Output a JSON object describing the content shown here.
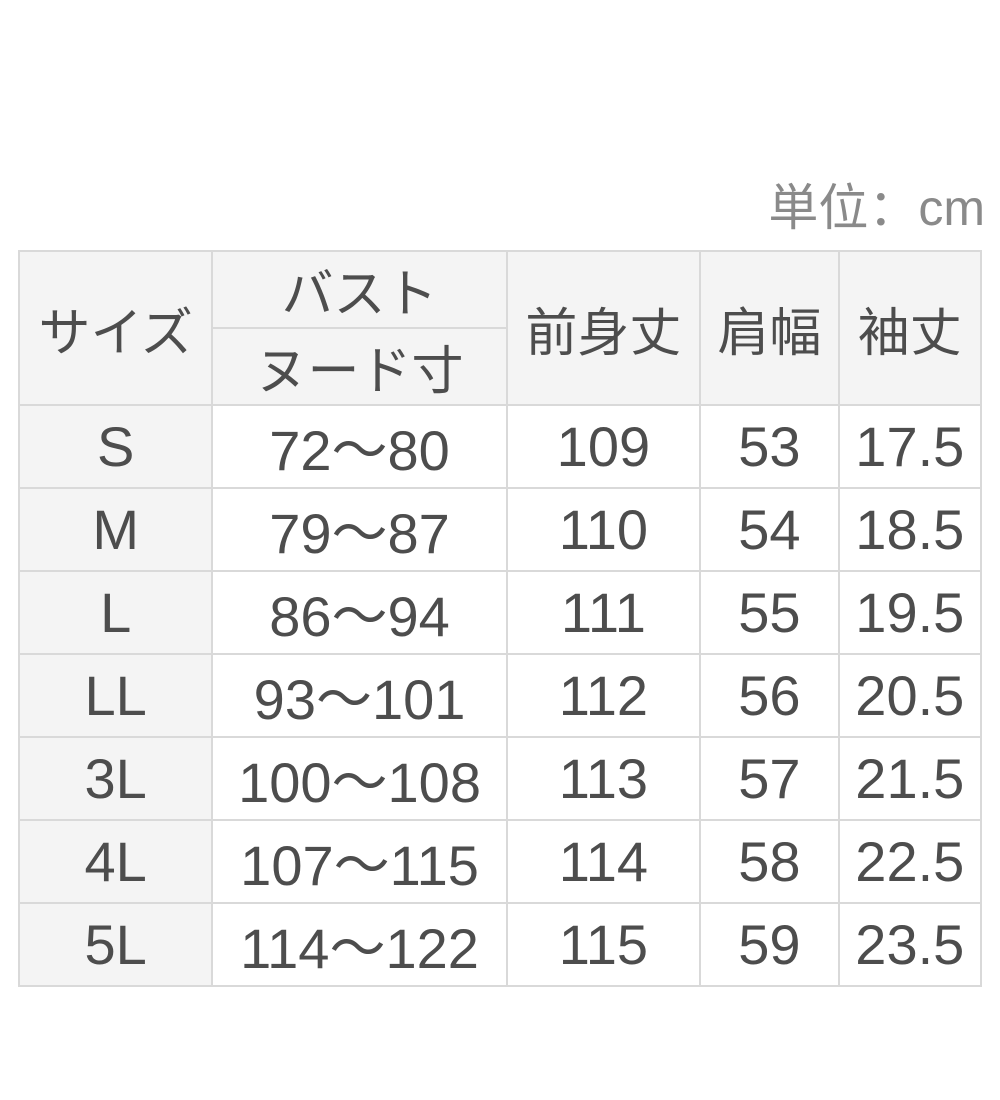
{
  "unit_label": "単位：cm",
  "table": {
    "headers": {
      "size": "サイズ",
      "bust": "バスト",
      "bust_sub": "ヌード寸",
      "front_length": "前身丈",
      "shoulder_width": "肩幅",
      "sleeve_length": "袖丈"
    },
    "rows": [
      {
        "size": "S",
        "bust": "72〜80",
        "front_length": "109",
        "shoulder_width": "53",
        "sleeve_length": "17.5"
      },
      {
        "size": "M",
        "bust": "79〜87",
        "front_length": "110",
        "shoulder_width": "54",
        "sleeve_length": "18.5"
      },
      {
        "size": "L",
        "bust": "86〜94",
        "front_length": "111",
        "shoulder_width": "55",
        "sleeve_length": "19.5"
      },
      {
        "size": "LL",
        "bust": "93〜101",
        "front_length": "112",
        "shoulder_width": "56",
        "sleeve_length": "20.5"
      },
      {
        "size": "3L",
        "bust": "100〜108",
        "front_length": "113",
        "shoulder_width": "57",
        "sleeve_length": "21.5"
      },
      {
        "size": "4L",
        "bust": "107〜115",
        "front_length": "114",
        "shoulder_width": "58",
        "sleeve_length": "22.5"
      },
      {
        "size": "5L",
        "bust": "114〜122",
        "front_length": "115",
        "shoulder_width": "59",
        "sleeve_length": "23.5"
      }
    ]
  },
  "chart_data": {
    "type": "table",
    "title": "",
    "unit_note": "単位：cm",
    "columns": [
      "サイズ",
      "バスト ヌード寸",
      "前身丈",
      "肩幅",
      "袖丈"
    ],
    "rows": [
      [
        "S",
        "72〜80",
        109,
        53,
        17.5
      ],
      [
        "M",
        "79〜87",
        110,
        54,
        18.5
      ],
      [
        "L",
        "86〜94",
        111,
        55,
        19.5
      ],
      [
        "LL",
        "93〜101",
        112,
        56,
        20.5
      ],
      [
        "3L",
        "100〜108",
        113,
        57,
        21.5
      ],
      [
        "4L",
        "107〜115",
        114,
        58,
        22.5
      ],
      [
        "5L",
        "114〜122",
        115,
        59,
        23.5
      ]
    ]
  },
  "colors": {
    "header_bg": "#f4f4f4",
    "cell_bg": "#ffffff",
    "border": "#d9d9d9",
    "text": "#4d4d4d",
    "unit_text": "#8a8a8a"
  }
}
